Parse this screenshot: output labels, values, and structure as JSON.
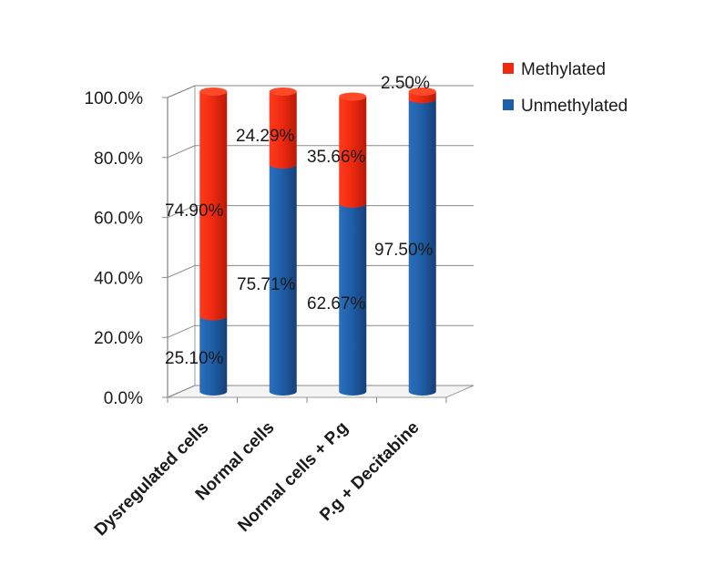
{
  "chart_data": {
    "type": "bar",
    "stacked": true,
    "three_d": true,
    "percent_stacked": true,
    "categories": [
      "Dysregulated cells",
      "Normal cells",
      "Normal cells + P.g",
      "P.g + Decitabine"
    ],
    "series": [
      {
        "name": "Unmethylated",
        "color": "#1f5fa8",
        "values": [
          25.1,
          75.71,
          62.67,
          97.5
        ],
        "labels": [
          "25.10%",
          "75.71%",
          "62.67%",
          "97.50%"
        ]
      },
      {
        "name": "Methylated",
        "color": "#f02a10",
        "values": [
          74.9,
          24.29,
          35.66,
          2.5
        ],
        "labels": [
          "74.90%",
          "24.29%",
          "35.66%",
          "2.50%"
        ]
      }
    ],
    "yaxis": {
      "min": 0,
      "max": 100,
      "ticks": [
        0,
        20,
        40,
        60,
        80,
        100
      ],
      "tick_labels": [
        "0.0%",
        "20.0%",
        "40.0%",
        "60.0%",
        "80.0%",
        "100.0%"
      ]
    },
    "grid": true,
    "legend": {
      "position": "top-right",
      "entries": [
        {
          "name": "Methylated",
          "color": "#f02a10"
        },
        {
          "name": "Unmethylated",
          "color": "#1f5fa8"
        }
      ]
    },
    "title": "",
    "xlabel": "",
    "ylabel": ""
  }
}
